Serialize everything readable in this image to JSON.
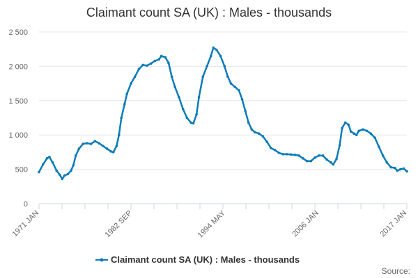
{
  "chart_data": {
    "type": "line",
    "title": "Claimant count SA (UK) : Males - thousands",
    "xlabel": "",
    "ylabel": "",
    "ylim": [
      0,
      2500
    ],
    "yticks": [
      {
        "value": 0,
        "label": "0"
      },
      {
        "value": 500,
        "label": "500"
      },
      {
        "value": 1000,
        "label": "1 000"
      },
      {
        "value": 1500,
        "label": "1 500"
      },
      {
        "value": 2000,
        "label": "2 000"
      },
      {
        "value": 2500,
        "label": "2 500"
      }
    ],
    "xlim": [
      1971.0,
      2017.0
    ],
    "xticks": [
      {
        "value": 1971.0,
        "label": "1971 JAN"
      },
      {
        "value": 1982.67,
        "label": "1982 SEP"
      },
      {
        "value": 1994.33,
        "label": "1994 MAY"
      },
      {
        "value": 2006.0,
        "label": "2006 JAN"
      },
      {
        "value": 2017.0,
        "label": "2017 JAN"
      }
    ],
    "grid": true,
    "legend_position": "bottom",
    "series": [
      {
        "name": "Claimant count SA (UK) : Males - thousands",
        "color": "#0b7cb8",
        "points": [
          [
            1971.0,
            460
          ],
          [
            1971.5,
            570
          ],
          [
            1972.0,
            660
          ],
          [
            1972.3,
            680
          ],
          [
            1972.7,
            600
          ],
          [
            1973.2,
            480
          ],
          [
            1973.6,
            420
          ],
          [
            1973.9,
            360
          ],
          [
            1974.2,
            410
          ],
          [
            1974.6,
            430
          ],
          [
            1975.0,
            480
          ],
          [
            1975.3,
            560
          ],
          [
            1975.6,
            700
          ],
          [
            1976.0,
            800
          ],
          [
            1976.5,
            870
          ],
          [
            1977.0,
            880
          ],
          [
            1977.5,
            870
          ],
          [
            1978.0,
            910
          ],
          [
            1978.5,
            880
          ],
          [
            1979.0,
            840
          ],
          [
            1979.5,
            800
          ],
          [
            1980.0,
            760
          ],
          [
            1980.3,
            750
          ],
          [
            1980.7,
            840
          ],
          [
            1981.0,
            1000
          ],
          [
            1981.3,
            1250
          ],
          [
            1981.7,
            1450
          ],
          [
            1982.0,
            1600
          ],
          [
            1982.5,
            1750
          ],
          [
            1983.0,
            1850
          ],
          [
            1983.5,
            1960
          ],
          [
            1984.0,
            2020
          ],
          [
            1984.5,
            2010
          ],
          [
            1985.0,
            2040
          ],
          [
            1985.5,
            2080
          ],
          [
            1986.0,
            2100
          ],
          [
            1986.3,
            2150
          ],
          [
            1986.8,
            2130
          ],
          [
            1987.2,
            2050
          ],
          [
            1987.6,
            1850
          ],
          [
            1988.0,
            1700
          ],
          [
            1988.5,
            1550
          ],
          [
            1989.0,
            1380
          ],
          [
            1989.5,
            1250
          ],
          [
            1990.0,
            1180
          ],
          [
            1990.3,
            1170
          ],
          [
            1990.7,
            1300
          ],
          [
            1991.0,
            1550
          ],
          [
            1991.5,
            1850
          ],
          [
            1992.0,
            2000
          ],
          [
            1992.5,
            2150
          ],
          [
            1992.8,
            2270
          ],
          [
            1993.2,
            2240
          ],
          [
            1993.7,
            2150
          ],
          [
            1994.2,
            2000
          ],
          [
            1994.6,
            1850
          ],
          [
            1995.0,
            1750
          ],
          [
            1995.5,
            1700
          ],
          [
            1996.0,
            1650
          ],
          [
            1996.4,
            1520
          ],
          [
            1996.8,
            1350
          ],
          [
            1997.2,
            1180
          ],
          [
            1997.6,
            1080
          ],
          [
            1998.0,
            1040
          ],
          [
            1998.5,
            1020
          ],
          [
            1999.0,
            980
          ],
          [
            1999.5,
            900
          ],
          [
            2000.0,
            810
          ],
          [
            2000.5,
            780
          ],
          [
            2001.0,
            740
          ],
          [
            2001.5,
            720
          ],
          [
            2002.0,
            720
          ],
          [
            2002.5,
            715
          ],
          [
            2003.0,
            710
          ],
          [
            2003.5,
            700
          ],
          [
            2004.0,
            660
          ],
          [
            2004.5,
            620
          ],
          [
            2005.0,
            620
          ],
          [
            2005.5,
            670
          ],
          [
            2006.0,
            700
          ],
          [
            2006.5,
            700
          ],
          [
            2007.0,
            640
          ],
          [
            2007.5,
            600
          ],
          [
            2007.8,
            570
          ],
          [
            2008.2,
            650
          ],
          [
            2008.6,
            850
          ],
          [
            2008.9,
            1100
          ],
          [
            2009.3,
            1180
          ],
          [
            2009.7,
            1150
          ],
          [
            2010.0,
            1050
          ],
          [
            2010.4,
            1020
          ],
          [
            2010.7,
            1000
          ],
          [
            2011.0,
            1060
          ],
          [
            2011.5,
            1080
          ],
          [
            2012.0,
            1060
          ],
          [
            2012.5,
            1020
          ],
          [
            2013.0,
            960
          ],
          [
            2013.5,
            830
          ],
          [
            2014.0,
            700
          ],
          [
            2014.5,
            600
          ],
          [
            2015.0,
            530
          ],
          [
            2015.5,
            520
          ],
          [
            2015.8,
            480
          ],
          [
            2016.2,
            500
          ],
          [
            2016.6,
            510
          ],
          [
            2017.0,
            470
          ]
        ]
      }
    ]
  },
  "credit": "Source:"
}
